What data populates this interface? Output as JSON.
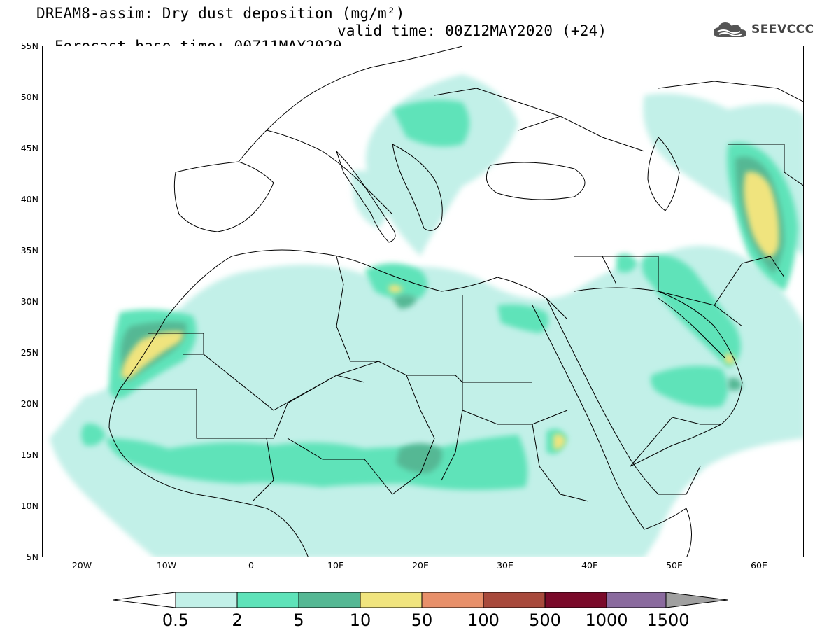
{
  "title": {
    "line1": "DREAM8-assim: Dry dust deposition (mg/m²)",
    "base_time": "Forecast base time: 00Z11MAY2020",
    "valid_time": "valid time: 00Z12MAY2020 (+24)"
  },
  "logo": {
    "icon": "cloud-icon",
    "text": "SEEVCCC"
  },
  "map": {
    "lon_range": [
      -25,
      65
    ],
    "lat_range": [
      5,
      55
    ],
    "lat_labels": [
      "55N",
      "50N",
      "45N",
      "40N",
      "35N",
      "30N",
      "25N",
      "20N",
      "15N",
      "10N",
      "5N"
    ],
    "lat_values": [
      55,
      50,
      45,
      40,
      35,
      30,
      25,
      20,
      15,
      10,
      5
    ],
    "lon_labels": [
      "20W",
      "10W",
      "0",
      "10E",
      "20E",
      "30E",
      "40E",
      "50E",
      "60E"
    ],
    "lon_values": [
      -20,
      -10,
      0,
      10,
      20,
      30,
      40,
      50,
      60
    ]
  },
  "colorbar": {
    "labels": [
      "0.5",
      "2",
      "5",
      "10",
      "50",
      "100",
      "500",
      "1000",
      "1500"
    ],
    "colors": [
      "#c2f0e8",
      "#5ee3b9",
      "#55b894",
      "#f0e47e",
      "#e8906a",
      "#a84a3c",
      "#7a0a2a",
      "#8a6a9e",
      "#a0a0a0"
    ],
    "under_color": "#ffffff",
    "over_color": "#a0a0a0"
  },
  "legend_colors": {
    "lt": "#c2f0e8",
    "md": "#5ee3b9",
    "dk": "#55b894",
    "yl": "#f0e47e"
  }
}
